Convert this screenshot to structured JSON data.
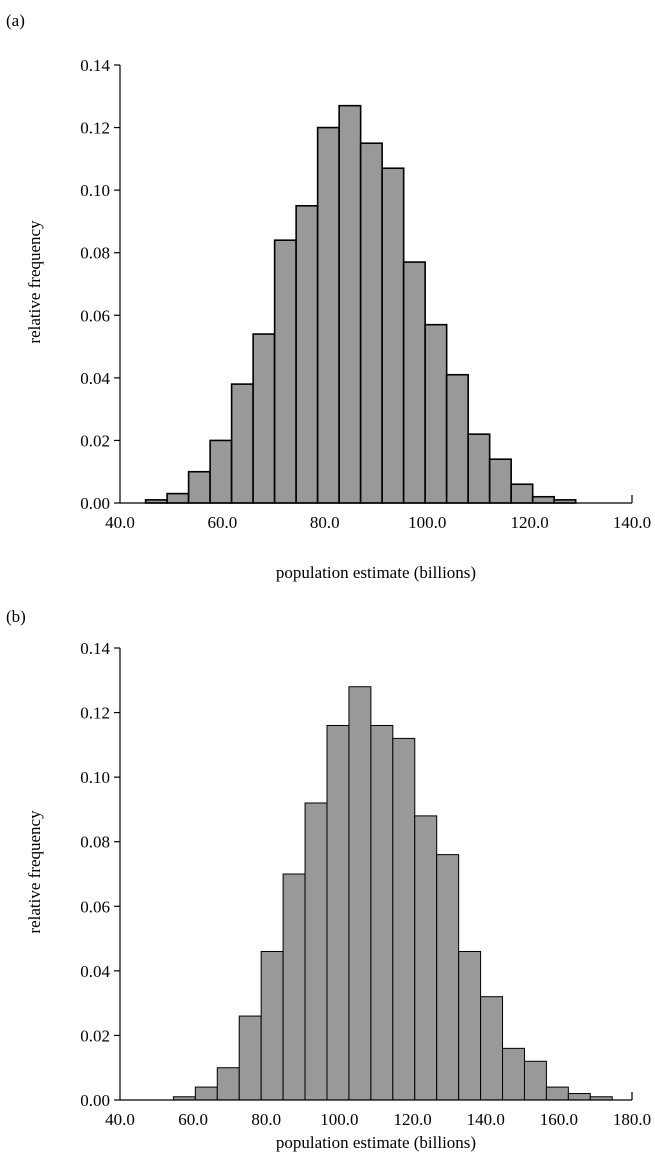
{
  "panels": [
    {
      "label": "(a)",
      "chart_data": {
        "type": "bar",
        "xlabel": "population estimate (billions)",
        "ylabel": "relative frequency",
        "xlim": [
          40,
          140
        ],
        "ylim": [
          0,
          0.14
        ],
        "xticks": [
          "40.0",
          "60.0",
          "80.0",
          "100.0",
          "120.0",
          "140.0"
        ],
        "xtick_values": [
          40,
          60,
          80,
          100,
          120,
          140
        ],
        "yticks": [
          "0.00",
          "0.02",
          "0.04",
          "0.06",
          "0.08",
          "0.10",
          "0.12",
          "0.14"
        ],
        "ytick_values": [
          0,
          0.02,
          0.04,
          0.06,
          0.08,
          0.1,
          0.12,
          0.14
        ],
        "bin_start": 45,
        "bin_width": 4.2,
        "values": [
          0.001,
          0.003,
          0.01,
          0.02,
          0.038,
          0.054,
          0.084,
          0.095,
          0.12,
          0.127,
          0.115,
          0.107,
          0.077,
          0.057,
          0.041,
          0.022,
          0.014,
          0.006,
          0.002,
          0.001
        ],
        "bar_color": "#999999",
        "grid": false
      }
    },
    {
      "label": "(b)",
      "chart_data": {
        "type": "bar",
        "xlabel": "population estimate (billions)",
        "ylabel": "relative frequency",
        "xlim": [
          40,
          180
        ],
        "ylim": [
          0,
          0.14
        ],
        "xticks": [
          "40.0",
          "60.0",
          "80.0",
          "100.0",
          "120.0",
          "140.0",
          "160.0",
          "180.0"
        ],
        "xtick_values": [
          40,
          60,
          80,
          100,
          120,
          140,
          160,
          180
        ],
        "yticks": [
          "0.00",
          "0.02",
          "0.04",
          "0.06",
          "0.08",
          "0.10",
          "0.12",
          "0.14"
        ],
        "ytick_values": [
          0,
          0.02,
          0.04,
          0.06,
          0.08,
          0.1,
          0.12,
          0.14
        ],
        "bin_start": 54.6,
        "bin_width": 6.0,
        "values": [
          0.001,
          0.004,
          0.01,
          0.026,
          0.046,
          0.07,
          0.092,
          0.116,
          0.128,
          0.116,
          0.112,
          0.088,
          0.076,
          0.046,
          0.032,
          0.016,
          0.012,
          0.004,
          0.002,
          0.001
        ],
        "bar_color": "#999999",
        "grid": false
      }
    }
  ]
}
